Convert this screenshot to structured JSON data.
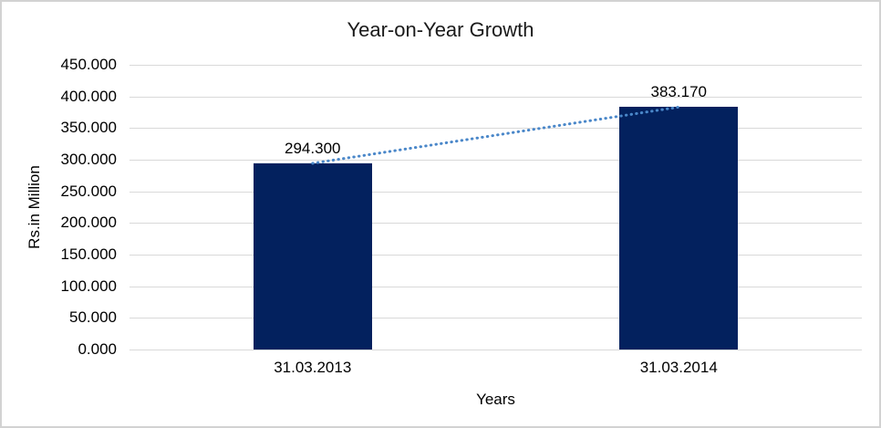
{
  "window": {
    "background": "#ffffff",
    "border_color": "#d2d2d2"
  },
  "chart_data": {
    "type": "bar",
    "title": "Year-on-Year Growth",
    "xlabel": "Years",
    "ylabel": "Rs.in Million",
    "categories": [
      "31.03.2013",
      "31.03.2014"
    ],
    "values": [
      294.3,
      383.17
    ],
    "data_labels": [
      "294.300",
      "383.170"
    ],
    "ylim": [
      0,
      450
    ],
    "y_tick_step": 50,
    "y_tick_labels_top_to_bottom": [
      "450.000",
      "400.000",
      "350.000",
      "300.000",
      "250.000",
      "200.000",
      "150.000",
      "100.000",
      "50.000",
      "0.000"
    ],
    "grid": true,
    "legend": "none",
    "colors": {
      "bar": "#03215e",
      "trendline": "#4a87c9",
      "gridline": "#d9d9d9",
      "text": "#000000",
      "title_text": "#1a1a1a"
    },
    "trendline": {
      "type": "linear",
      "style": "dotted",
      "from_value": 294.3,
      "to_value": 383.17
    }
  }
}
